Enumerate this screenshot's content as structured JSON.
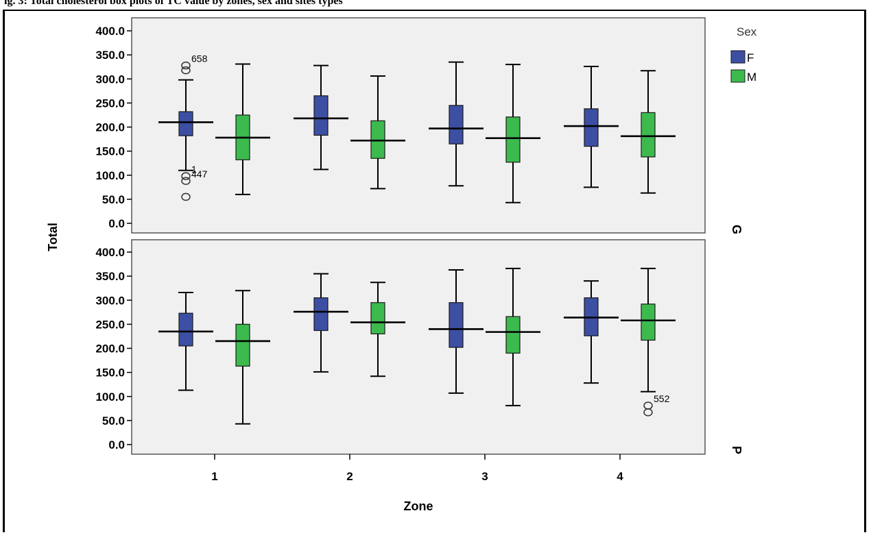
{
  "figure_heading": "ig. 3: Total cholesterol box plots of TC value by zones, sex and sites types",
  "chart_data": {
    "type": "boxplot",
    "xlabel": "Zone",
    "ylabel": "Total",
    "categories": [
      "1",
      "2",
      "3",
      "4"
    ],
    "y_ticks": [
      "0.0",
      "50.0",
      "100.0",
      "150.0",
      "200.0",
      "250.0",
      "300.0",
      "350.0",
      "400.0"
    ],
    "ylim": [
      0,
      400
    ],
    "legend": {
      "title": "Sex",
      "placement": "top-right",
      "items": [
        {
          "label": "F",
          "color": "#3c4fa3"
        },
        {
          "label": "M",
          "color": "#3dba4e"
        }
      ]
    },
    "panels": [
      {
        "label": "G",
        "series": [
          {
            "name": "F",
            "boxes": [
              {
                "zone": "1",
                "whisker_low": 110,
                "q1": 182,
                "median": 210,
                "q3": 232,
                "whisker_high": 298,
                "outliers": [
                  {
                    "value": 328,
                    "label": "658"
                  },
                  {
                    "value": 318,
                    "label": ""
                  },
                  {
                    "value": 98,
                    "label": "1"
                  },
                  {
                    "value": 88,
                    "label": "447"
                  },
                  {
                    "value": 55,
                    "label": ""
                  }
                ]
              },
              {
                "zone": "2",
                "whisker_low": 112,
                "q1": 183,
                "median": 218,
                "q3": 265,
                "whisker_high": 328,
                "outliers": []
              },
              {
                "zone": "3",
                "whisker_low": 78,
                "q1": 165,
                "median": 197,
                "q3": 245,
                "whisker_high": 335,
                "outliers": []
              },
              {
                "zone": "4",
                "whisker_low": 75,
                "q1": 160,
                "median": 202,
                "q3": 238,
                "whisker_high": 326,
                "outliers": []
              }
            ]
          },
          {
            "name": "M",
            "boxes": [
              {
                "zone": "1",
                "whisker_low": 60,
                "q1": 132,
                "median": 178,
                "q3": 225,
                "whisker_high": 331,
                "outliers": []
              },
              {
                "zone": "2",
                "whisker_low": 72,
                "q1": 135,
                "median": 172,
                "q3": 213,
                "whisker_high": 306,
                "outliers": []
              },
              {
                "zone": "3",
                "whisker_low": 43,
                "q1": 127,
                "median": 177,
                "q3": 221,
                "whisker_high": 330,
                "outliers": []
              },
              {
                "zone": "4",
                "whisker_low": 63,
                "q1": 138,
                "median": 181,
                "q3": 230,
                "whisker_high": 317,
                "outliers": []
              }
            ]
          }
        ]
      },
      {
        "label": "P",
        "series": [
          {
            "name": "F",
            "boxes": [
              {
                "zone": "1",
                "whisker_low": 113,
                "q1": 205,
                "median": 235,
                "q3": 273,
                "whisker_high": 316,
                "outliers": []
              },
              {
                "zone": "2",
                "whisker_low": 151,
                "q1": 237,
                "median": 276,
                "q3": 305,
                "whisker_high": 355,
                "outliers": []
              },
              {
                "zone": "3",
                "whisker_low": 107,
                "q1": 202,
                "median": 240,
                "q3": 295,
                "whisker_high": 363,
                "outliers": []
              },
              {
                "zone": "4",
                "whisker_low": 128,
                "q1": 226,
                "median": 264,
                "q3": 305,
                "whisker_high": 340,
                "outliers": []
              }
            ]
          },
          {
            "name": "M",
            "boxes": [
              {
                "zone": "1",
                "whisker_low": 43,
                "q1": 163,
                "median": 215,
                "q3": 250,
                "whisker_high": 320,
                "outliers": []
              },
              {
                "zone": "2",
                "whisker_low": 142,
                "q1": 230,
                "median": 254,
                "q3": 295,
                "whisker_high": 337,
                "outliers": []
              },
              {
                "zone": "3",
                "whisker_low": 81,
                "q1": 190,
                "median": 234,
                "q3": 266,
                "whisker_high": 366,
                "outliers": []
              },
              {
                "zone": "4",
                "whisker_low": 110,
                "q1": 217,
                "median": 258,
                "q3": 292,
                "whisker_high": 366,
                "outliers": [
                  {
                    "value": 81,
                    "label": "552"
                  },
                  {
                    "value": 67,
                    "label": ""
                  }
                ]
              }
            ]
          }
        ]
      }
    ]
  }
}
